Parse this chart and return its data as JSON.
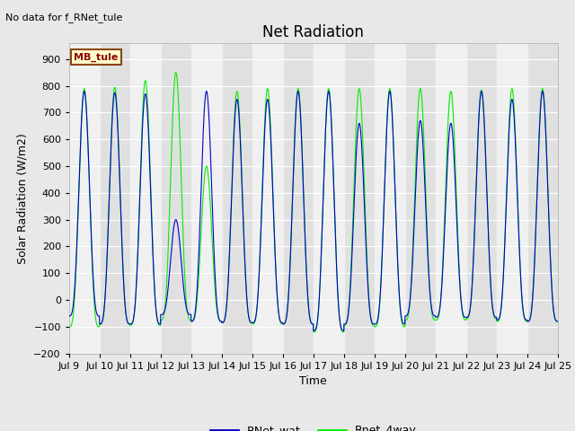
{
  "title": "Net Radiation",
  "no_data_text": "No data for f_RNet_tule",
  "mb_tule_label": "MB_tule",
  "ylabel": "Solar Radiation (W/m2)",
  "xlabel": "Time",
  "ylim": [
    -200,
    960
  ],
  "yticks": [
    -200,
    -100,
    0,
    100,
    200,
    300,
    400,
    500,
    600,
    700,
    800,
    900
  ],
  "legend_entries": [
    "RNet_wat",
    "Rnet_4way"
  ],
  "line_colors": [
    "#0000cc",
    "#00ee00"
  ],
  "bg_color": "#e8e8e8",
  "plot_bg": "#e0e0e0",
  "band_color_light": "#f0f0f0",
  "n_days": 16,
  "day_start": 9,
  "peaks_blue": [
    780,
    775,
    770,
    300,
    780,
    750,
    750,
    780,
    780,
    660,
    780,
    670,
    660,
    780,
    750,
    780
  ],
  "peaks_green": [
    790,
    795,
    820,
    850,
    500,
    780,
    790,
    790,
    790,
    790,
    790,
    790,
    780,
    785,
    790,
    790
  ],
  "troughs_blue": [
    -60,
    -90,
    -90,
    -55,
    -80,
    -85,
    -85,
    -90,
    -115,
    -90,
    -90,
    -60,
    -65,
    -65,
    -75,
    -80
  ],
  "troughs_green": [
    -100,
    -90,
    -95,
    -75,
    -80,
    -85,
    -90,
    -90,
    -120,
    -95,
    -100,
    -75,
    -75,
    -70,
    -80,
    -80
  ],
  "title_fontsize": 12,
  "axis_label_fontsize": 9,
  "tick_fontsize": 8,
  "legend_fontsize": 9,
  "figsize": [
    6.4,
    4.8
  ],
  "dpi": 100
}
